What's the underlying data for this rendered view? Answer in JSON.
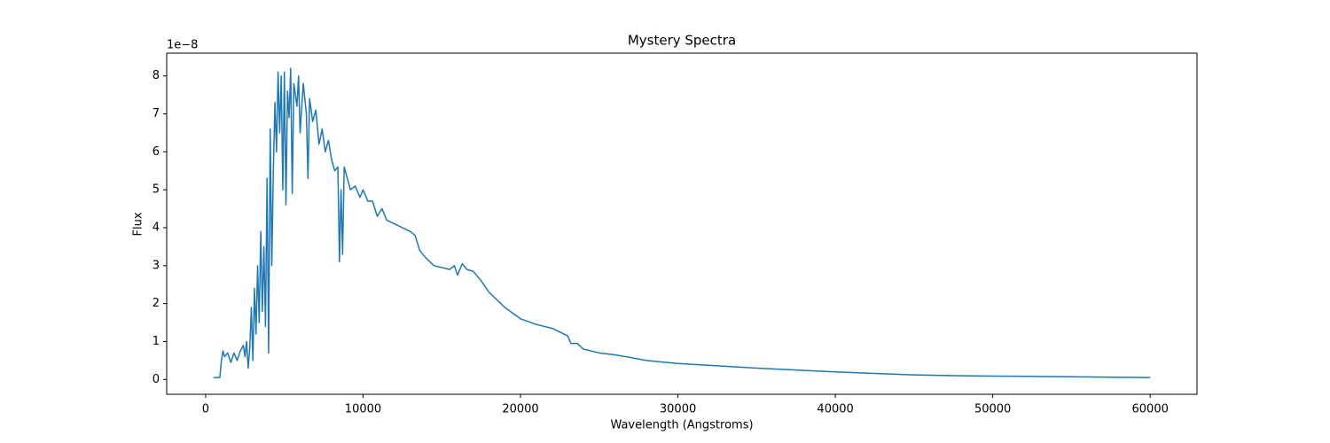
{
  "chart_data": {
    "type": "line",
    "title": "Mystery Spectra",
    "x_label": "Wavelength (Angstroms)",
    "y_label": "Flux",
    "y_offset_label": "1e−8",
    "x": [
      500,
      900,
      1000,
      1100,
      1200,
      1400,
      1600,
      1800,
      2000,
      2200,
      2400,
      2500,
      2600,
      2700,
      2800,
      2900,
      3000,
      3100,
      3200,
      3300,
      3400,
      3500,
      3600,
      3700,
      3800,
      3900,
      4000,
      4100,
      4200,
      4300,
      4400,
      4500,
      4600,
      4700,
      4800,
      4900,
      5000,
      5100,
      5200,
      5300,
      5400,
      5500,
      5600,
      5800,
      5900,
      6000,
      6200,
      6400,
      6500,
      6600,
      6800,
      7000,
      7200,
      7400,
      7600,
      7800,
      8000,
      8200,
      8400,
      8500,
      8600,
      8700,
      8800,
      9000,
      9200,
      9500,
      9800,
      10000,
      10300,
      10600,
      10900,
      11200,
      11500,
      12000,
      12500,
      13000,
      13300,
      13600,
      14000,
      14500,
      15000,
      15500,
      15800,
      16000,
      16300,
      16600,
      17000,
      17500,
      18000,
      18500,
      19000,
      19500,
      20000,
      21000,
      22000,
      23000,
      23200,
      23600,
      24000,
      25000,
      26000,
      27000,
      28000,
      29000,
      30000,
      32500,
      35000,
      37500,
      40000,
      42500,
      45000,
      47500,
      50000,
      55000,
      60000
    ],
    "series": [
      {
        "color": "#1f77b4",
        "values": [
          0.05,
          0.05,
          0.5,
          0.75,
          0.6,
          0.7,
          0.45,
          0.7,
          0.5,
          0.75,
          0.9,
          0.6,
          1.0,
          0.3,
          0.8,
          1.9,
          0.5,
          2.4,
          1.2,
          3.0,
          1.5,
          3.9,
          1.8,
          3.5,
          1.4,
          5.3,
          0.7,
          6.6,
          3.0,
          5.5,
          7.3,
          6.0,
          8.1,
          6.5,
          8.0,
          5.0,
          8.1,
          4.6,
          7.6,
          6.9,
          8.2,
          4.9,
          7.8,
          7.2,
          8.0,
          6.5,
          7.8,
          7.0,
          5.3,
          7.4,
          6.8,
          7.1,
          6.2,
          6.6,
          6.0,
          6.3,
          5.8,
          5.5,
          5.6,
          3.1,
          5.0,
          3.3,
          5.6,
          5.3,
          5.0,
          5.1,
          4.8,
          5.0,
          4.7,
          4.7,
          4.3,
          4.5,
          4.2,
          4.1,
          4.0,
          3.9,
          3.8,
          3.4,
          3.2,
          3.0,
          2.95,
          2.9,
          3.0,
          2.75,
          3.05,
          2.9,
          2.85,
          2.6,
          2.3,
          2.1,
          1.9,
          1.75,
          1.6,
          1.45,
          1.35,
          1.15,
          0.95,
          0.95,
          0.8,
          0.7,
          0.65,
          0.58,
          0.5,
          0.46,
          0.42,
          0.36,
          0.3,
          0.25,
          0.2,
          0.16,
          0.12,
          0.1,
          0.09,
          0.07,
          0.05
        ]
      }
    ],
    "xlim": [
      -2475,
      62975
    ],
    "xticks": [
      0,
      10000,
      20000,
      30000,
      40000,
      50000,
      60000
    ],
    "ylim": [
      -0.39,
      8.6
    ],
    "yticks": [
      0,
      1,
      2,
      3,
      4,
      5,
      6,
      7,
      8
    ]
  }
}
